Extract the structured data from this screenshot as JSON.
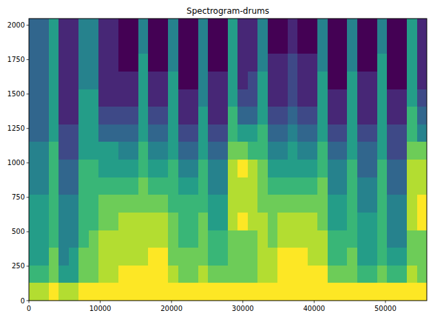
{
  "chart_data": {
    "type": "heatmap",
    "title": "Spectrogram-drums",
    "xlim": [
      0,
      55800
    ],
    "ylim": [
      0,
      2048
    ],
    "xticks": [
      0,
      10000,
      20000,
      30000,
      40000,
      50000
    ],
    "yticks": [
      0,
      250,
      500,
      750,
      1000,
      1250,
      1500,
      1750,
      2000
    ],
    "zlim": [
      0,
      9
    ],
    "cells": [
      [
        8,
        8,
        9,
        8,
        8,
        9,
        9,
        9,
        9,
        9,
        9,
        9,
        9,
        9,
        9,
        9,
        9,
        9,
        9,
        9,
        9,
        9,
        9,
        9,
        9,
        9,
        9,
        9,
        9,
        9,
        9,
        9,
        9,
        9,
        9,
        9,
        9,
        9,
        9,
        9
      ],
      [
        6,
        6,
        7,
        5,
        5,
        7,
        7,
        8,
        8,
        9,
        9,
        9,
        9,
        9,
        8,
        7,
        7,
        8,
        7,
        7,
        7,
        7,
        7,
        8,
        8,
        9,
        9,
        9,
        9,
        9,
        7,
        7,
        7,
        6,
        6,
        7,
        6,
        6,
        8,
        7
      ],
      [
        5,
        5,
        7,
        4,
        5,
        7,
        7,
        8,
        8,
        8,
        8,
        8,
        9,
        9,
        7,
        7,
        7,
        7,
        6,
        6,
        7,
        7,
        7,
        8,
        8,
        9,
        9,
        9,
        8,
        8,
        6,
        6,
        7,
        5,
        5,
        6,
        5,
        5,
        7,
        7
      ],
      [
        5,
        5,
        6,
        4,
        4,
        6,
        7,
        8,
        8,
        8,
        8,
        8,
        8,
        8,
        7,
        6,
        6,
        7,
        6,
        6,
        7,
        7,
        7,
        8,
        7,
        8,
        8,
        8,
        8,
        8,
        6,
        6,
        6,
        5,
        5,
        6,
        4,
        4,
        7,
        7
      ],
      [
        5,
        5,
        6,
        4,
        4,
        6,
        6,
        7,
        7,
        8,
        8,
        8,
        8,
        8,
        7,
        6,
        6,
        7,
        5,
        5,
        8,
        9,
        8,
        8,
        7,
        8,
        8,
        8,
        8,
        7,
        5,
        5,
        6,
        5,
        5,
        6,
        4,
        4,
        8,
        9
      ],
      [
        5,
        5,
        6,
        4,
        4,
        6,
        6,
        7,
        7,
        7,
        7,
        7,
        7,
        7,
        6,
        6,
        6,
        6,
        5,
        5,
        8,
        8,
        8,
        7,
        7,
        7,
        7,
        7,
        7,
        7,
        5,
        5,
        6,
        4,
        4,
        6,
        4,
        4,
        8,
        9
      ],
      [
        4,
        4,
        6,
        3,
        3,
        6,
        6,
        6,
        6,
        6,
        6,
        7,
        6,
        6,
        6,
        5,
        5,
        6,
        4,
        4,
        8,
        8,
        8,
        7,
        6,
        6,
        6,
        6,
        6,
        7,
        4,
        4,
        6,
        4,
        4,
        6,
        3,
        3,
        8,
        8
      ],
      [
        4,
        4,
        6,
        3,
        3,
        6,
        6,
        5,
        5,
        5,
        5,
        6,
        5,
        5,
        6,
        4,
        4,
        6,
        4,
        4,
        8,
        9,
        8,
        7,
        5,
        5,
        5,
        5,
        5,
        6,
        4,
        4,
        6,
        3,
        3,
        6,
        3,
        3,
        8,
        8
      ],
      [
        4,
        4,
        6,
        2,
        2,
        5,
        5,
        5,
        5,
        4,
        4,
        6,
        4,
        4,
        5,
        3,
        3,
        5,
        3,
        3,
        7,
        7,
        6,
        6,
        4,
        4,
        5,
        4,
        4,
        6,
        3,
        3,
        5,
        3,
        3,
        5,
        2,
        2,
        7,
        7
      ],
      [
        3,
        3,
        5,
        2,
        2,
        5,
        5,
        3,
        3,
        3,
        3,
        5,
        3,
        3,
        5,
        2,
        2,
        5,
        2,
        2,
        6,
        5,
        5,
        6,
        3,
        3,
        4,
        3,
        3,
        5,
        2,
        2,
        5,
        2,
        2,
        5,
        2,
        2,
        6,
        4
      ],
      [
        3,
        3,
        5,
        1,
        1,
        5,
        5,
        2,
        2,
        2,
        2,
        5,
        2,
        2,
        5,
        1,
        1,
        5,
        1,
        1,
        6,
        3,
        3,
        5,
        2,
        2,
        3,
        2,
        2,
        5,
        1,
        1,
        5,
        1,
        1,
        5,
        1,
        1,
        6,
        3
      ],
      [
        3,
        3,
        5,
        1,
        1,
        5,
        5,
        1,
        1,
        1,
        1,
        5,
        1,
        1,
        5,
        1,
        1,
        4,
        1,
        1,
        5,
        2,
        2,
        5,
        1,
        1,
        2,
        1,
        1,
        5,
        1,
        1,
        5,
        1,
        1,
        5,
        1,
        1,
        5,
        2
      ],
      [
        3,
        3,
        5,
        1,
        1,
        4,
        4,
        1,
        1,
        1,
        1,
        5,
        1,
        1,
        5,
        0,
        0,
        4,
        1,
        1,
        5,
        1,
        2,
        5,
        1,
        1,
        2,
        1,
        1,
        5,
        0,
        0,
        5,
        1,
        1,
        5,
        0,
        0,
        5,
        1
      ],
      [
        3,
        3,
        5,
        1,
        1,
        4,
        4,
        1,
        1,
        0,
        0,
        5,
        0,
        0,
        4,
        0,
        0,
        4,
        0,
        0,
        5,
        1,
        1,
        4,
        1,
        1,
        2,
        1,
        1,
        4,
        0,
        0,
        4,
        0,
        0,
        5,
        0,
        0,
        5,
        1
      ],
      [
        3,
        3,
        5,
        1,
        1,
        4,
        4,
        1,
        1,
        0,
        0,
        4,
        0,
        0,
        4,
        0,
        0,
        4,
        0,
        0,
        5,
        1,
        1,
        4,
        0,
        0,
        1,
        0,
        0,
        4,
        0,
        0,
        4,
        0,
        0,
        4,
        0,
        0,
        5,
        1
      ],
      [
        3,
        3,
        5,
        1,
        1,
        4,
        4,
        1,
        1,
        0,
        0,
        4,
        0,
        0,
        4,
        0,
        0,
        4,
        0,
        0,
        5,
        1,
        1,
        4,
        0,
        0,
        1,
        0,
        0,
        4,
        0,
        0,
        4,
        0,
        0,
        4,
        0,
        0,
        5,
        1
      ]
    ]
  }
}
